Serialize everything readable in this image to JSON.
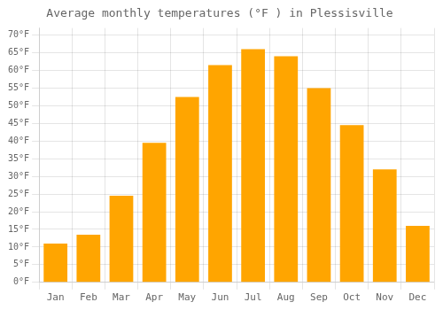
{
  "chart_data": {
    "type": "bar",
    "title": "Average monthly temperatures (°F ) in Plessisville",
    "categories": [
      "Jan",
      "Feb",
      "Mar",
      "Apr",
      "May",
      "Jun",
      "Jul",
      "Aug",
      "Sep",
      "Oct",
      "Nov",
      "Dec"
    ],
    "values": [
      11,
      13.5,
      24.5,
      39.5,
      52.5,
      61.5,
      66,
      64,
      55,
      44.5,
      32,
      16
    ],
    "color": "#FFA500",
    "ylim": [
      0,
      72
    ],
    "yticks": [
      {
        "value": 0,
        "label": "0°F"
      },
      {
        "value": 5,
        "label": "5°F"
      },
      {
        "value": 10,
        "label": "10°F"
      },
      {
        "value": 15,
        "label": "15°F"
      },
      {
        "value": 20,
        "label": "20°F"
      },
      {
        "value": 25,
        "label": "25°F"
      },
      {
        "value": 30,
        "label": "30°F"
      },
      {
        "value": 35,
        "label": "35°F"
      },
      {
        "value": 40,
        "label": "40°F"
      },
      {
        "value": 45,
        "label": "45°F"
      },
      {
        "value": 50,
        "label": "50°F"
      },
      {
        "value": 55,
        "label": "55°F"
      },
      {
        "value": 60,
        "label": "60°F"
      },
      {
        "value": 65,
        "label": "65°F"
      },
      {
        "value": 70,
        "label": "70°F"
      }
    ],
    "grid": true
  }
}
